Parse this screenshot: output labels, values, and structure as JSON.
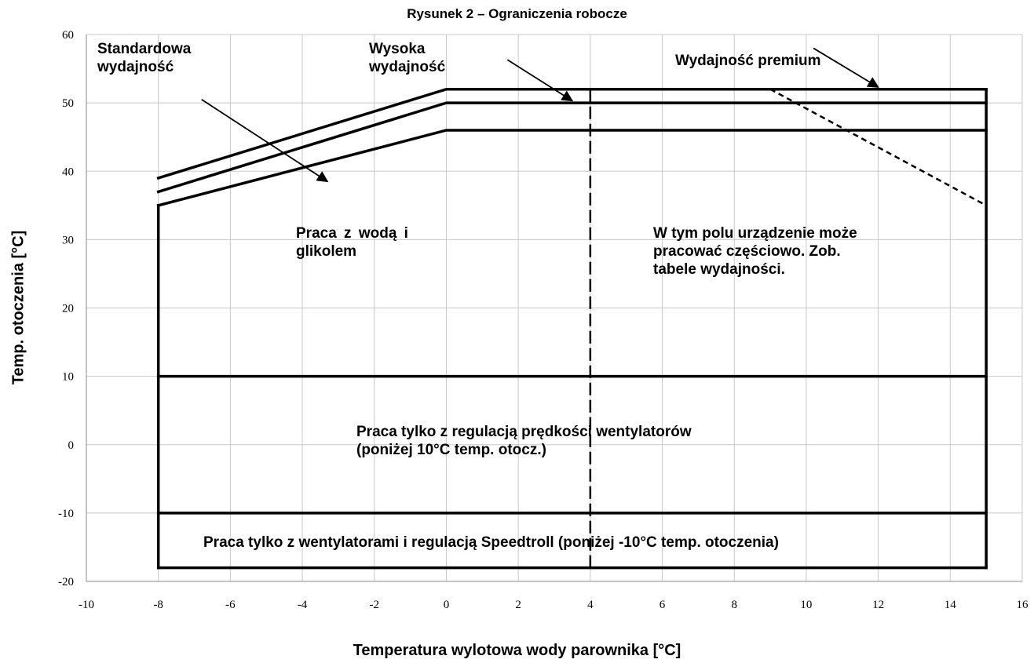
{
  "chart_data": {
    "type": "line",
    "title": "Rysunek 2 – Ograniczenia robocze",
    "xlabel": "Temperatura wylotowa wody parownika [°C]",
    "ylabel": "Temp. otoczenia [°C]",
    "xlim": [
      -10,
      16
    ],
    "ylim": [
      -20,
      60
    ],
    "xticks": [
      -10,
      -8,
      -6,
      -4,
      -2,
      0,
      2,
      4,
      6,
      8,
      10,
      12,
      14,
      16
    ],
    "yticks": [
      -20,
      -10,
      0,
      10,
      20,
      30,
      40,
      50,
      60
    ],
    "grid": true,
    "series": [
      {
        "name": "Standardowa wydajność",
        "x": [
          -8,
          0,
          15
        ],
        "y": [
          35,
          46,
          46
        ]
      },
      {
        "name": "Wysoka wydajność",
        "x": [
          -8,
          0,
          15
        ],
        "y": [
          37,
          50,
          50
        ]
      },
      {
        "name": "Wydajność premium",
        "x": [
          -8,
          0,
          15
        ],
        "y": [
          39,
          52,
          52
        ]
      }
    ],
    "limits": {
      "left_x": -8,
      "right_x": 15,
      "bottom_y": -18,
      "line_10": 10,
      "line_minus10": -10,
      "dashed_x": 4,
      "premium_dashed": {
        "x": [
          9,
          15
        ],
        "y": [
          52,
          35
        ]
      }
    },
    "annotations": {
      "standard": "Standardowa\nwydajność",
      "high": "Wysoka\nwydajność",
      "premium": "Wydajność premium",
      "water_glycol": "Praca  z  wodą  i\nglikolem",
      "partial": "W tym polu urządzenie może\npracować częściowo. Zob.\ntabele wydajności.",
      "fan_speed": "Praca tylko z regulacją prędkości wentylatorów\n(poniżej 10°C temp. otocz.)",
      "speedtroll": "Praca tylko z wentylatorami i regulacją Speedtroll (poniżej -10°C temp. otoczenia)"
    },
    "arrows": [
      {
        "from": [
          -6.8,
          50.5
        ],
        "to": [
          -3.3,
          38.5
        ]
      },
      {
        "from": [
          1.7,
          56.3
        ],
        "to": [
          3.5,
          50.3
        ]
      },
      {
        "from": [
          10.2,
          58.0
        ],
        "to": [
          12.0,
          52.3
        ]
      }
    ]
  }
}
